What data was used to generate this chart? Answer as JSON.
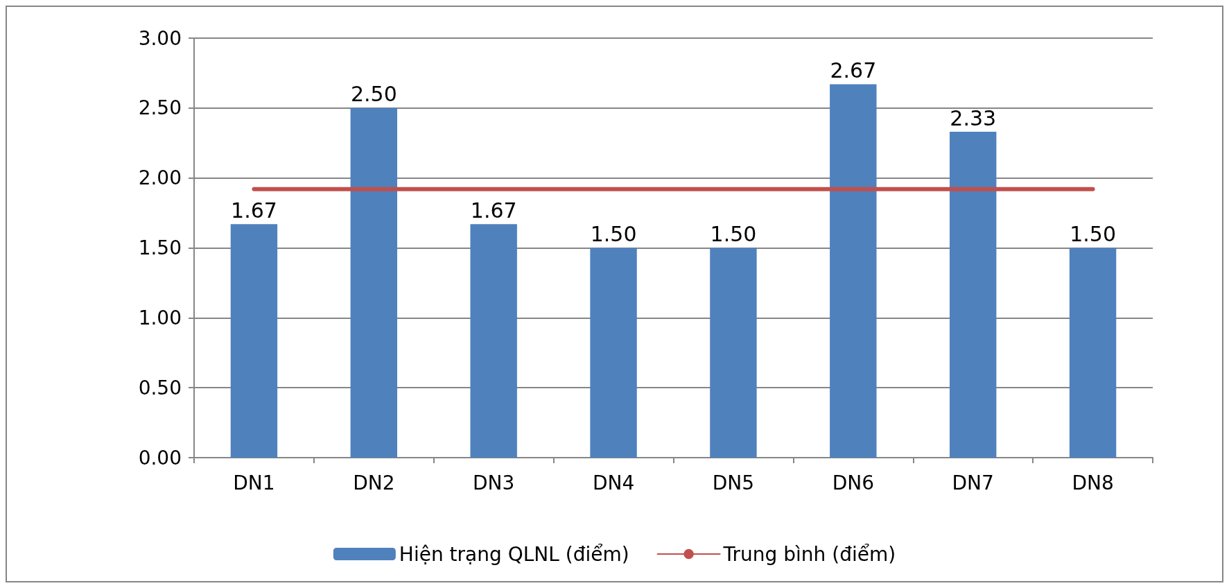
{
  "chart_data": {
    "type": "bar",
    "categories": [
      "DN1",
      "DN2",
      "DN3",
      "DN4",
      "DN5",
      "DN6",
      "DN7",
      "DN8"
    ],
    "series": [
      {
        "name": "Hiện trạng QLNL (điểm)",
        "color": "#4f81bd",
        "values": [
          1.67,
          2.5,
          1.67,
          1.5,
          1.5,
          2.67,
          2.33,
          1.5
        ],
        "value_labels": [
          "1.67",
          "2.50",
          "1.67",
          "1.50",
          "1.50",
          "2.67",
          "2.33",
          "1.50"
        ]
      },
      {
        "name": "Trung bình (điểm)",
        "type": "line",
        "color": "#c0504d",
        "values": [
          1.92,
          1.92,
          1.92,
          1.92,
          1.92,
          1.92,
          1.92,
          1.92
        ]
      }
    ],
    "ylim": [
      0,
      3
    ],
    "yticks": [
      {
        "value": 0,
        "label": "0.00"
      },
      {
        "value": 0.5,
        "label": "0.50"
      },
      {
        "value": 1,
        "label": "1.00"
      },
      {
        "value": 1.5,
        "label": "1.50"
      },
      {
        "value": 2,
        "label": "2.00"
      },
      {
        "value": 2.5,
        "label": "2.50"
      },
      {
        "value": 3,
        "label": "3.00"
      }
    ],
    "grid": "y",
    "legend": "bottom",
    "marker": "none",
    "line_style": "solid"
  }
}
